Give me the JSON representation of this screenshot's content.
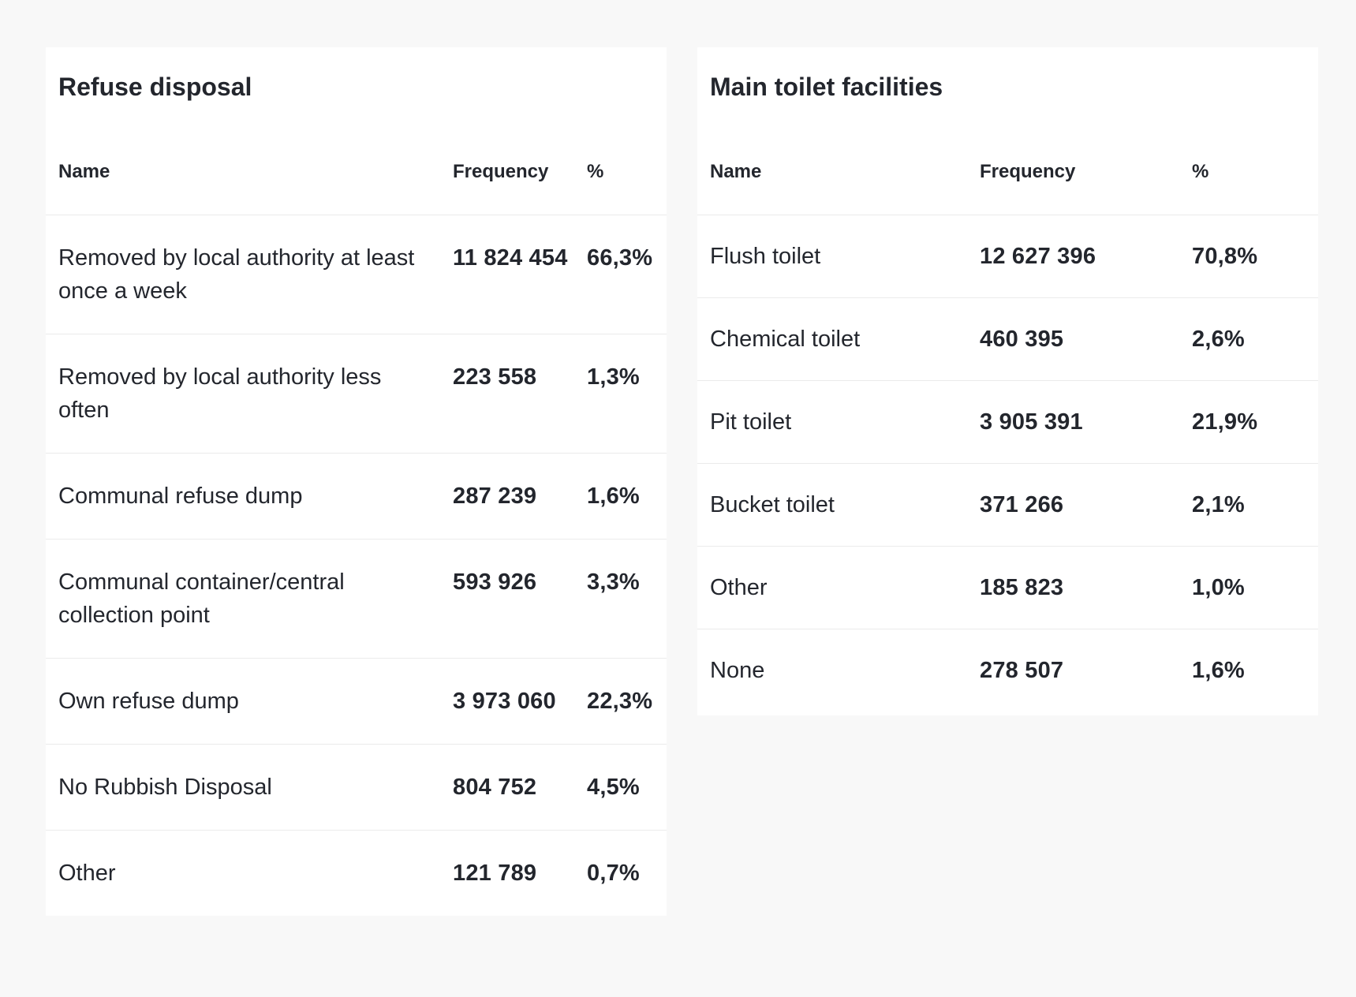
{
  "refuse": {
    "title": "Refuse disposal",
    "headers": {
      "name": "Name",
      "frequency": "Frequency",
      "percent": "%"
    },
    "rows": [
      {
        "name": "Removed by local authority at least once a week",
        "frequency": "11 824 454",
        "percent": "66,3%"
      },
      {
        "name": "Removed by local authority less often",
        "frequency": "223 558",
        "percent": "1,3%"
      },
      {
        "name": "Communal refuse dump",
        "frequency": "287 239",
        "percent": "1,6%"
      },
      {
        "name": "Communal container/central collection point",
        "frequency": "593 926",
        "percent": "3,3%"
      },
      {
        "name": "Own refuse dump",
        "frequency": "3 973 060",
        "percent": "22,3%"
      },
      {
        "name": "No Rubbish Disposal",
        "frequency": "804 752",
        "percent": "4,5%"
      },
      {
        "name": "Other",
        "frequency": "121 789",
        "percent": "0,7%"
      }
    ]
  },
  "toilet": {
    "title": "Main toilet facilities",
    "headers": {
      "name": "Name",
      "frequency": "Frequency",
      "percent": "%"
    },
    "rows": [
      {
        "name": "Flush toilet",
        "frequency": "12 627 396",
        "percent": "70,8%"
      },
      {
        "name": "Chemical toilet",
        "frequency": "460 395",
        "percent": "2,6%"
      },
      {
        "name": "Pit toilet",
        "frequency": "3 905 391",
        "percent": "21,9%"
      },
      {
        "name": "Bucket toilet",
        "frequency": "371 266",
        "percent": "2,1%"
      },
      {
        "name": "Other",
        "frequency": "185 823",
        "percent": "1,0%"
      },
      {
        "name": "None",
        "frequency": "278 507",
        "percent": "1,6%"
      }
    ]
  }
}
